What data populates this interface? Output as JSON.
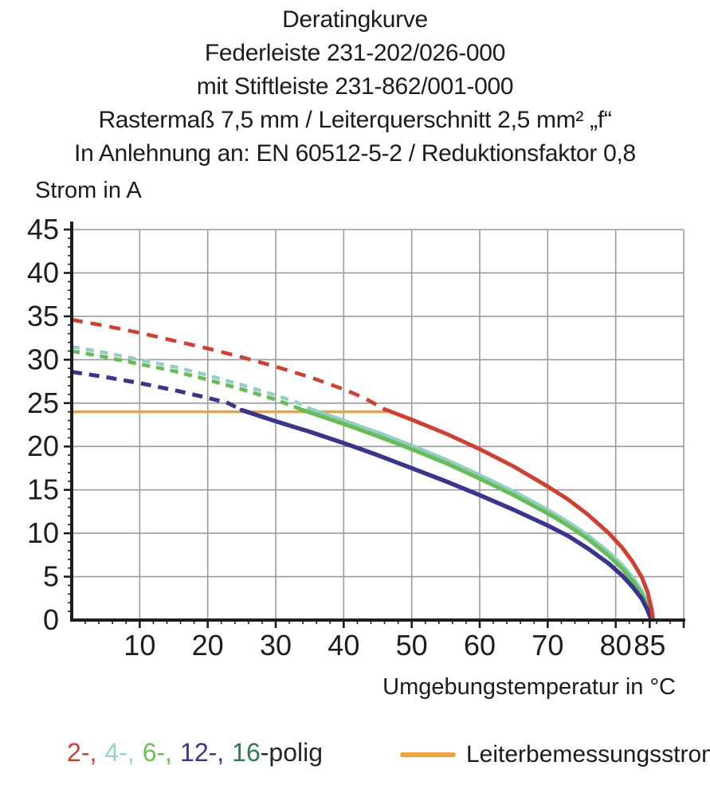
{
  "title": {
    "line1": "Deratingkurve",
    "line2": "Federleiste 231-202/026-000",
    "line3": "mit Stiftleiste 231-862/001-000",
    "line4": "Rastermaß 7,5 mm / Leiterquerschnitt 2,5 mm² „f“",
    "line5": "In Anlehnung an: EN 60512-5-2 / Reduktionsfaktor 0,8"
  },
  "legend": {
    "poles": [
      {
        "text": "2-,",
        "color": "#D13F31",
        "sep": false
      },
      {
        "text": "4-,",
        "color": "#9AD2C9",
        "sep": true
      },
      {
        "text": "6-,",
        "color": "#6CBF57",
        "sep": true
      },
      {
        "text": "12-,",
        "color": "#38348F",
        "sep": true
      },
      {
        "text": "16",
        "color": "#2F7C4E",
        "sep": true
      },
      {
        "text": "-polig",
        "color": "#262626",
        "sep": false
      }
    ],
    "rated_label": "Leiterbemessungsstrom"
  },
  "chart_data": {
    "type": "line",
    "title": "Deratingkurve",
    "ylabel": "Strom in A",
    "xlabel": "Umgebungstemperatur in °C",
    "xlim": [
      0,
      90
    ],
    "ylim": [
      0,
      45
    ],
    "x_tick_labels": [
      10,
      20,
      30,
      40,
      50,
      60,
      70,
      80,
      85
    ],
    "y_tick_labels": [
      0,
      5,
      10,
      15,
      20,
      25,
      30,
      35,
      40,
      45
    ],
    "x_minor_step": 2,
    "y_minor_step": 1,
    "grid": {
      "x_step": 10,
      "y_step": 5,
      "color": "#9B9B9B"
    },
    "axis_color": "#1d1d1d",
    "rated_current": {
      "label": "Leiterbemessungsstrom",
      "value": 24,
      "x_start": 0,
      "x_end": 46.3,
      "color": "#F0A23C"
    },
    "series": [
      {
        "name": "16-polig",
        "color": "#2F7C4E",
        "width": 4.4,
        "dash": "10 8",
        "dashed": [
          [
            0,
            31.0
          ],
          [
            5,
            30.3
          ],
          [
            10,
            29.5
          ],
          [
            15,
            28.7
          ],
          [
            20,
            27.7
          ],
          [
            25,
            26.6
          ],
          [
            30,
            25.4
          ],
          [
            34,
            24.2
          ]
        ],
        "solid": [
          [
            34,
            24.2
          ],
          [
            40,
            22.6
          ],
          [
            45,
            21.2
          ],
          [
            50,
            19.7
          ],
          [
            55,
            18.1
          ],
          [
            60,
            16.3
          ],
          [
            65,
            14.4
          ],
          [
            70,
            12.3
          ],
          [
            73,
            10.9
          ],
          [
            76,
            9.3
          ],
          [
            79,
            7.4
          ],
          [
            81,
            5.9
          ],
          [
            82.5,
            4.5
          ],
          [
            83.8,
            3.0
          ],
          [
            84.7,
            1.6
          ],
          [
            85.25,
            0.2
          ]
        ]
      },
      {
        "name": "4-polig",
        "color": "#8FCFC6",
        "width": 4.4,
        "dash": "10 8",
        "dashed": [
          [
            0,
            31.5
          ],
          [
            5,
            30.8
          ],
          [
            10,
            30.0
          ],
          [
            15,
            29.2
          ],
          [
            20,
            28.2
          ],
          [
            25,
            27.1
          ],
          [
            30,
            25.9
          ],
          [
            33,
            25.1
          ],
          [
            35.5,
            24.2
          ]
        ],
        "solid": [
          [
            35.5,
            24.2
          ],
          [
            40,
            23.0
          ],
          [
            45,
            21.6
          ],
          [
            50,
            20.1
          ],
          [
            55,
            18.5
          ],
          [
            60,
            16.7
          ],
          [
            65,
            14.8
          ],
          [
            70,
            12.7
          ],
          [
            73,
            11.3
          ],
          [
            76,
            9.7
          ],
          [
            79,
            7.8
          ],
          [
            81,
            6.3
          ],
          [
            82.5,
            4.9
          ],
          [
            83.8,
            3.4
          ],
          [
            84.7,
            1.9
          ],
          [
            85.2,
            0.2
          ]
        ]
      },
      {
        "name": "6-polig",
        "color": "#66BD55",
        "width": 4.6,
        "dash": "10 8",
        "dashed": [
          [
            0,
            31.0
          ],
          [
            5,
            30.3
          ],
          [
            10,
            29.5
          ],
          [
            15,
            28.7
          ],
          [
            20,
            27.7
          ],
          [
            25,
            26.6
          ],
          [
            30,
            25.4
          ],
          [
            34,
            24.2
          ]
        ],
        "solid": [
          [
            34,
            24.2
          ],
          [
            40,
            22.6
          ],
          [
            45,
            21.2
          ],
          [
            50,
            19.7
          ],
          [
            55,
            18.1
          ],
          [
            60,
            16.3
          ],
          [
            65,
            14.4
          ],
          [
            70,
            12.3
          ],
          [
            73,
            10.9
          ],
          [
            76,
            9.3
          ],
          [
            79,
            7.4
          ],
          [
            81,
            5.9
          ],
          [
            82.5,
            4.5
          ],
          [
            83.8,
            3.0
          ],
          [
            84.7,
            1.6
          ],
          [
            85.25,
            0.2
          ]
        ]
      },
      {
        "name": "12-polig",
        "color": "#38348F",
        "width": 5,
        "dash": "13 9",
        "dashed": [
          [
            0,
            28.6
          ],
          [
            5,
            28.0
          ],
          [
            10,
            27.3
          ],
          [
            15,
            26.5
          ],
          [
            20,
            25.6
          ],
          [
            23,
            25.0
          ],
          [
            25,
            24.2
          ]
        ],
        "solid": [
          [
            25,
            24.2
          ],
          [
            30,
            22.9
          ],
          [
            35,
            21.7
          ],
          [
            40,
            20.4
          ],
          [
            45,
            19.0
          ],
          [
            50,
            17.5
          ],
          [
            55,
            16.0
          ],
          [
            60,
            14.4
          ],
          [
            65,
            12.7
          ],
          [
            70,
            10.9
          ],
          [
            73,
            9.7
          ],
          [
            76,
            8.2
          ],
          [
            79,
            6.5
          ],
          [
            81,
            5.1
          ],
          [
            82.5,
            3.8
          ],
          [
            83.8,
            2.5
          ],
          [
            84.6,
            1.3
          ],
          [
            85.15,
            0.2
          ]
        ]
      },
      {
        "name": "2-polig",
        "color": "#D13F31",
        "width": 4.6,
        "dash": "14 10",
        "dashed": [
          [
            0,
            34.6
          ],
          [
            5,
            33.9
          ],
          [
            10,
            33.1
          ],
          [
            15,
            32.2
          ],
          [
            20,
            31.3
          ],
          [
            25,
            30.3
          ],
          [
            30,
            29.2
          ],
          [
            35,
            28.0
          ],
          [
            40,
            26.6
          ],
          [
            43,
            25.6
          ],
          [
            46,
            24.3
          ]
        ],
        "solid": [
          [
            46,
            24.3
          ],
          [
            50,
            23.1
          ],
          [
            55,
            21.5
          ],
          [
            60,
            19.7
          ],
          [
            65,
            17.7
          ],
          [
            70,
            15.4
          ],
          [
            73,
            13.9
          ],
          [
            76,
            12.1
          ],
          [
            79,
            10.0
          ],
          [
            81,
            8.3
          ],
          [
            82.5,
            6.7
          ],
          [
            83.8,
            5.0
          ],
          [
            84.7,
            3.2
          ],
          [
            85.3,
            1.2
          ],
          [
            85.45,
            0.2
          ]
        ]
      }
    ]
  }
}
